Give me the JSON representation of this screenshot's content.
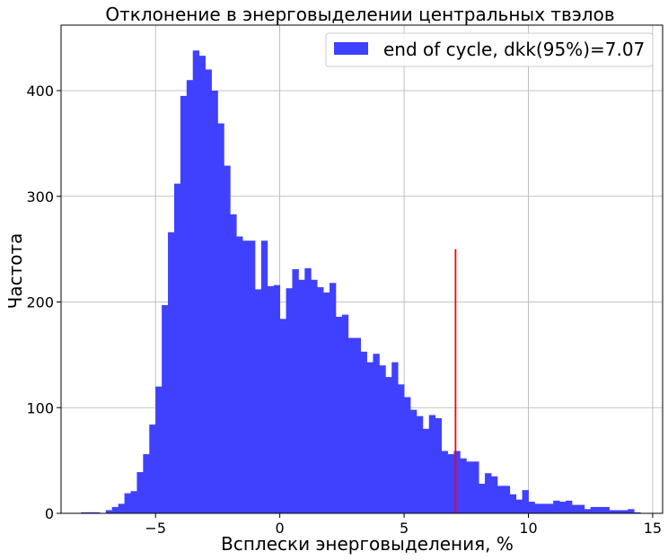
{
  "chart_data": {
    "type": "bar",
    "title": "Отклонение в энерговыделении центральных твэлов",
    "xlabel": "Всплески энерговыделения, %",
    "ylabel": "Частота",
    "xlim": [
      -8.8,
      15.4
    ],
    "ylim": [
      0,
      462
    ],
    "x_ticks": [
      -5,
      0,
      5,
      10,
      15
    ],
    "y_ticks": [
      0,
      100,
      200,
      300,
      400
    ],
    "grid": true,
    "legend_position": "top-right",
    "series": [
      {
        "name": "end of cycle, dkk(95%)=7.07",
        "color": "#4040ff",
        "bin_start": -8.0,
        "bin_width": 0.25,
        "values": [
          1,
          1,
          1,
          0,
          3,
          6,
          9,
          19,
          21,
          39,
          56,
          84,
          120,
          197,
          266,
          312,
          395,
          410,
          438,
          433,
          420,
          400,
          369,
          329,
          283,
          262,
          258,
          258,
          212,
          258,
          215,
          216,
          184,
          213,
          231,
          221,
          232,
          221,
          214,
          209,
          218,
          186,
          188,
          166,
          166,
          153,
          143,
          151,
          140,
          129,
          143,
          122,
          110,
          98,
          92,
          80,
          93,
          90,
          59,
          56,
          59,
          52,
          49,
          49,
          28,
          38,
          35,
          26,
          26,
          18,
          13,
          22,
          11,
          9,
          9,
          9,
          12,
          11,
          12,
          8,
          8,
          4,
          6,
          6,
          6,
          3,
          3,
          3,
          4,
          1
        ]
      }
    ],
    "vline": {
      "x": 7.07,
      "y_max": 250,
      "color": "#ff0000"
    }
  }
}
